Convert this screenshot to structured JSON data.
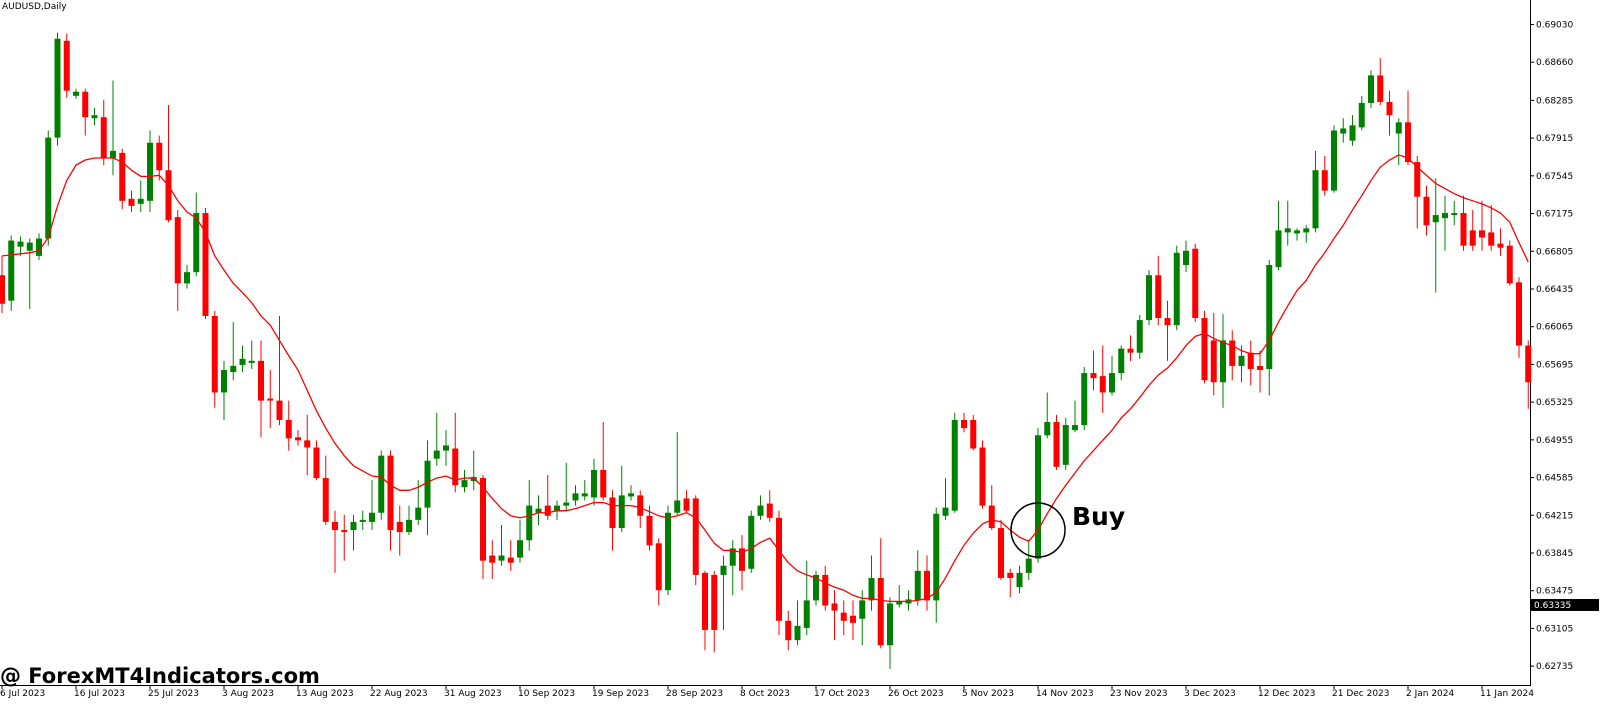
{
  "chart_data": {
    "type": "candlestick",
    "title": "AUDUSD,Daily",
    "watermark": "@ ForexMT4Indicators.com",
    "annotation": "Buy",
    "up_color": "#008000",
    "down_color": "#ff0000",
    "categories": [
      "6 Jul 2023",
      null,
      null,
      null,
      null,
      null,
      null,
      null,
      "16 Jul 2023",
      null,
      null,
      null,
      null,
      null,
      null,
      null,
      "25 Jul 2023",
      null,
      null,
      null,
      null,
      null,
      null,
      null,
      "3 Aug 2023",
      null,
      null,
      null,
      null,
      null,
      null,
      null,
      "13 Aug 2023",
      null,
      null,
      null,
      null,
      null,
      null,
      null,
      "22 Aug 2023",
      null,
      null,
      null,
      null,
      null,
      null,
      null,
      "31 Aug 2023",
      null,
      null,
      null,
      null,
      null,
      null,
      null,
      "10 Sep 2023",
      null,
      null,
      null,
      null,
      null,
      null,
      null,
      "19 Sep 2023",
      null,
      null,
      null,
      null,
      null,
      null,
      null,
      "28 Sep 2023",
      null,
      null,
      null,
      null,
      null,
      null,
      null,
      "8 Oct 2023",
      null,
      null,
      null,
      null,
      null,
      null,
      null,
      "17 Oct 2023",
      null,
      null,
      null,
      null,
      null,
      null,
      null,
      "26 Oct 2023",
      null,
      null,
      null,
      null,
      null,
      null,
      null,
      "5 Nov 2023",
      null,
      null,
      null,
      null,
      null,
      null,
      null,
      "14 Nov 2023",
      null,
      null,
      null,
      null,
      null,
      null,
      null,
      "23 Nov 2023",
      null,
      null,
      null,
      null,
      null,
      null,
      null,
      "3 Dec 2023",
      null,
      null,
      null,
      null,
      null,
      null,
      null,
      "12 Dec 2023",
      null,
      null,
      null,
      null,
      null,
      null,
      null,
      "21 Dec 2023",
      null,
      null,
      null,
      null,
      null,
      null,
      null,
      "2 Jan 2024",
      null,
      null,
      null,
      null,
      null,
      null,
      null,
      "11 Jan 2024",
      null,
      null,
      null,
      null,
      null
    ],
    "open": [
      0.6657,
      0.6632,
      0.6685,
      0.6681,
      0.6676,
      0.6693,
      0.6792,
      0.6887,
      0.6833,
      0.6837,
      0.6811,
      0.6812,
      0.6772,
      0.6777,
      0.6732,
      0.6727,
      0.673,
      0.6787,
      0.676,
      0.6714,
      0.6649,
      0.666,
      0.6718,
      0.6617,
      0.6542,
      0.6562,
      0.6569,
      0.6571,
      0.6573,
      0.6536,
      0.6534,
      0.6515,
      0.6498,
      0.6495,
      0.6488,
      0.6458,
      0.6415,
      0.6407,
      0.6407,
      0.6415,
      0.6415,
      0.6424,
      0.648,
      0.6415,
      0.6405,
      0.6417,
      0.6429,
      0.6477,
      0.6485,
      0.6487,
      0.6449,
      0.6455,
      0.6458,
      0.6382,
      0.6377,
      0.638,
      0.638,
      0.6397,
      0.6424,
      0.6431,
      0.6426,
      0.6431,
      0.6436,
      0.644,
      0.6439,
      0.6466,
      0.6439,
      0.6409,
      0.644,
      0.6441,
      0.6421,
      0.6394,
      0.6348,
      0.6424,
      0.6438,
      0.6438,
      0.6365,
      0.6363,
      0.6363,
      0.6372,
      0.6389,
      0.6369,
      0.6421,
      0.6433,
      0.6419,
      0.6318,
      0.6299,
      0.6311,
      0.6338,
      0.6363,
      0.6335,
      0.6326,
      0.6323,
      0.632,
      0.6338,
      0.636,
      0.6294,
      0.6334,
      0.6335,
      0.6338,
      0.6367,
      0.6338,
      0.6421,
      0.6426,
      0.6515,
      0.6515,
      0.6488,
      0.6431,
      0.6409,
      0.6365,
      0.6351,
      0.6365,
      0.6379,
      0.65,
      0.6513,
      0.6471,
      0.6505,
      0.651,
      0.6561,
      0.6558,
      0.6542,
      0.6561,
      0.6585,
      0.6581,
      0.6613,
      0.6657,
      0.6615,
      0.6608,
      0.6667,
      0.6683,
      0.6615,
      0.6593,
      0.6552,
      0.6593,
      0.6568,
      0.6581,
      0.6568,
      0.6565,
      0.6665,
      0.6699,
      0.6698,
      0.6699,
      0.6703,
      0.676,
      0.674,
      0.6796,
      0.6789,
      0.6802,
      0.6826,
      0.6853,
      0.6827,
      0.6796,
      0.6807,
      0.6768,
      0.6734,
      0.6709,
      0.6713,
      0.6716,
      0.6718,
      0.6701,
      0.6701,
      0.6699,
      0.6688,
      0.6686,
      0.665,
      0.6588
    ],
    "high": [
      0.6676,
      0.6696,
      0.6695,
      0.6693,
      0.6698,
      0.6799,
      0.6895,
      0.6894,
      0.684,
      0.684,
      0.6821,
      0.6829,
      0.6848,
      0.6781,
      0.674,
      0.675,
      0.6799,
      0.6794,
      0.6824,
      0.6721,
      0.6667,
      0.6738,
      0.6723,
      0.6622,
      0.6573,
      0.6611,
      0.6588,
      0.6593,
      0.6593,
      0.6564,
      0.6617,
      0.6534,
      0.6505,
      0.652,
      0.6495,
      0.648,
      0.6426,
      0.6422,
      0.6422,
      0.6426,
      0.6456,
      0.6485,
      0.6485,
      0.6431,
      0.6431,
      0.6456,
      0.6495,
      0.6522,
      0.6505,
      0.6522,
      0.6466,
      0.6485,
      0.6461,
      0.6397,
      0.6412,
      0.6397,
      0.6417,
      0.6456,
      0.6441,
      0.6461,
      0.6436,
      0.6473,
      0.6451,
      0.6456,
      0.6477,
      0.6513,
      0.6446,
      0.647,
      0.6451,
      0.6446,
      0.6431,
      0.6399,
      0.6431,
      0.6503,
      0.6446,
      0.6441,
      0.6367,
      0.6367,
      0.6382,
      0.6397,
      0.6402,
      0.6426,
      0.6441,
      0.6446,
      0.6426,
      0.6328,
      0.6338,
      0.6377,
      0.6367,
      0.6372,
      0.6348,
      0.6338,
      0.6338,
      0.6348,
      0.6382,
      0.6399,
      0.6341,
      0.6353,
      0.6348,
      0.6387,
      0.6382,
      0.6429,
      0.6458,
      0.6522,
      0.6522,
      0.652,
      0.6495,
      0.6451,
      0.6417,
      0.6369,
      0.6372,
      0.6397,
      0.6507,
      0.6542,
      0.652,
      0.6517,
      0.6534,
      0.6567,
      0.6583,
      0.6588,
      0.6578,
      0.6588,
      0.6598,
      0.6618,
      0.6662,
      0.6676,
      0.6632,
      0.6686,
      0.6691,
      0.6688,
      0.6622,
      0.662,
      0.6619,
      0.6603,
      0.6588,
      0.6593,
      0.6583,
      0.6672,
      0.673,
      0.673,
      0.6703,
      0.6706,
      0.6779,
      0.6774,
      0.6804,
      0.6811,
      0.6814,
      0.6833,
      0.6858,
      0.687,
      0.6838,
      0.6811,
      0.6838,
      0.6774,
      0.6745,
      0.6752,
      0.6735,
      0.673,
      0.6735,
      0.6721,
      0.673,
      0.6726,
      0.6703,
      0.6691,
      0.6655,
      0.6593
    ],
    "low": [
      0.662,
      0.6622,
      0.6676,
      0.6624,
      0.6672,
      0.6686,
      0.6784,
      0.6831,
      0.683,
      0.6794,
      0.6804,
      0.6765,
      0.6755,
      0.6722,
      0.6719,
      0.6719,
      0.6719,
      0.675,
      0.6709,
      0.6622,
      0.6644,
      0.6656,
      0.6614,
      0.6527,
      0.6515,
      0.6554,
      0.6562,
      0.6565,
      0.6498,
      0.6507,
      0.651,
      0.6485,
      0.649,
      0.6461,
      0.6456,
      0.6412,
      0.6365,
      0.6377,
      0.6387,
      0.6407,
      0.6407,
      0.6417,
      0.6387,
      0.6382,
      0.6402,
      0.6412,
      0.6402,
      0.647,
      0.647,
      0.6444,
      0.6444,
      0.6446,
      0.6359,
      0.6359,
      0.6372,
      0.6367,
      0.6375,
      0.6387,
      0.6412,
      0.6417,
      0.6417,
      0.6426,
      0.6431,
      0.6436,
      0.6431,
      0.6436,
      0.6387,
      0.6405,
      0.6436,
      0.6409,
      0.6387,
      0.6333,
      0.6343,
      0.6421,
      0.6424,
      0.6353,
      0.6289,
      0.6287,
      0.6309,
      0.6343,
      0.6348,
      0.6365,
      0.6417,
      0.6415,
      0.6304,
      0.6289,
      0.6294,
      0.6304,
      0.6333,
      0.6328,
      0.6299,
      0.6304,
      0.6299,
      0.6294,
      0.6328,
      0.6291,
      0.6271,
      0.6331,
      0.6328,
      0.6333,
      0.6328,
      0.6316,
      0.6417,
      0.6424,
      0.6503,
      0.6485,
      0.6428,
      0.6407,
      0.6358,
      0.6341,
      0.6345,
      0.6358,
      0.6375,
      0.6497,
      0.6466,
      0.6466,
      0.6503,
      0.6505,
      0.6544,
      0.6522,
      0.6539,
      0.6554,
      0.6573,
      0.6575,
      0.6608,
      0.6608,
      0.6573,
      0.6603,
      0.666,
      0.6611,
      0.6551,
      0.6539,
      0.6527,
      0.6554,
      0.6552,
      0.6549,
      0.6542,
      0.6539,
      0.6662,
      0.6686,
      0.6691,
      0.6689,
      0.6699,
      0.6735,
      0.6738,
      0.6787,
      0.6784,
      0.6799,
      0.6821,
      0.6824,
      0.6794,
      0.6765,
      0.6765,
      0.6703,
      0.6696,
      0.664,
      0.6681,
      0.6706,
      0.6681,
      0.6681,
      0.6681,
      0.6681,
      0.6676,
      0.6647,
      0.6576,
      0.6526
    ],
    "close": [
      0.6629,
      0.6691,
      0.669,
      0.6689,
      0.6693,
      0.6792,
      0.6889,
      0.6838,
      0.6837,
      0.6812,
      0.6814,
      0.6772,
      0.6779,
      0.673,
      0.6725,
      0.6732,
      0.6787,
      0.676,
      0.6711,
      0.6649,
      0.666,
      0.6718,
      0.6617,
      0.6542,
      0.6564,
      0.6568,
      0.6575,
      0.6573,
      0.6534,
      0.6534,
      0.6515,
      0.6497,
      0.6495,
      0.6488,
      0.6458,
      0.6415,
      0.6407,
      0.6405,
      0.6415,
      0.6417,
      0.6424,
      0.648,
      0.6407,
      0.6405,
      0.6417,
      0.6429,
      0.6475,
      0.6485,
      0.649,
      0.6451,
      0.6456,
      0.6459,
      0.6377,
      0.6375,
      0.6382,
      0.6375,
      0.6397,
      0.6431,
      0.6428,
      0.6421,
      0.6431,
      0.6434,
      0.6443,
      0.6443,
      0.6466,
      0.6439,
      0.6409,
      0.6441,
      0.6443,
      0.6421,
      0.6392,
      0.6348,
      0.6424,
      0.6436,
      0.6426,
      0.6363,
      0.6309,
      0.6309,
      0.6372,
      0.6389,
      0.6367,
      0.6421,
      0.6431,
      0.6419,
      0.6318,
      0.6299,
      0.6313,
      0.6338,
      0.6363,
      0.6333,
      0.6328,
      0.6318,
      0.6316,
      0.6338,
      0.636,
      0.6294,
      0.6335,
      0.6337,
      0.6339,
      0.6367,
      0.6338,
      0.6423,
      0.6429,
      0.6515,
      0.6507,
      0.6487,
      0.6431,
      0.6409,
      0.636,
      0.636,
      0.6365,
      0.6379,
      0.65,
      0.6513,
      0.6469,
      0.651,
      0.651,
      0.6561,
      0.6556,
      0.6542,
      0.6561,
      0.6585,
      0.6581,
      0.6613,
      0.6657,
      0.6615,
      0.6608,
      0.6679,
      0.6681,
      0.6615,
      0.6554,
      0.6552,
      0.6593,
      0.6568,
      0.6578,
      0.6565,
      0.6564,
      0.6667,
      0.6701,
      0.6703,
      0.6701,
      0.6703,
      0.676,
      0.674,
      0.6799,
      0.6801,
      0.6804,
      0.6826,
      0.6853,
      0.6827,
      0.6814,
      0.6807,
      0.6768,
      0.6734,
      0.6706,
      0.6716,
      0.6718,
      0.6718,
      0.6686,
      0.6686,
      0.6694,
      0.6686,
      0.6684,
      0.6649,
      0.6588,
      0.6552
    ],
    "ma": {
      "color": "#ff0000",
      "values": [
        0.6676,
        0.6677,
        0.6678,
        0.6679,
        0.6681,
        0.6694,
        0.6725,
        0.675,
        0.6765,
        0.677,
        0.6772,
        0.6772,
        0.6772,
        0.6768,
        0.676,
        0.6754,
        0.6754,
        0.6755,
        0.6745,
        0.673,
        0.6719,
        0.6713,
        0.6699,
        0.6676,
        0.6662,
        0.6649,
        0.664,
        0.663,
        0.6617,
        0.6608,
        0.6593,
        0.6578,
        0.6564,
        0.6544,
        0.6524,
        0.6507,
        0.6492,
        0.648,
        0.647,
        0.6465,
        0.646,
        0.6459,
        0.6451,
        0.6446,
        0.6446,
        0.6449,
        0.6454,
        0.6458,
        0.646,
        0.6456,
        0.6458,
        0.6458,
        0.6449,
        0.6438,
        0.6428,
        0.6421,
        0.6419,
        0.6421,
        0.6424,
        0.6424,
        0.6426,
        0.6426,
        0.6428,
        0.6431,
        0.6434,
        0.6434,
        0.6431,
        0.6431,
        0.6431,
        0.6429,
        0.6425,
        0.6421,
        0.6419,
        0.6421,
        0.6424,
        0.6419,
        0.6407,
        0.6394,
        0.6387,
        0.6387,
        0.6385,
        0.6389,
        0.6395,
        0.6399,
        0.6387,
        0.6375,
        0.6367,
        0.6363,
        0.636,
        0.6355,
        0.6351,
        0.6348,
        0.6343,
        0.634,
        0.634,
        0.6338,
        0.6337,
        0.6337,
        0.6337,
        0.6338,
        0.634,
        0.6346,
        0.636,
        0.6377,
        0.6392,
        0.6404,
        0.6413,
        0.6417,
        0.6415,
        0.6407,
        0.64,
        0.6396,
        0.6407,
        0.6423,
        0.6438,
        0.6451,
        0.6463,
        0.6475,
        0.6485,
        0.6495,
        0.6505,
        0.6517,
        0.6526,
        0.6537,
        0.6549,
        0.6559,
        0.6566,
        0.6576,
        0.6588,
        0.6597,
        0.66,
        0.6595,
        0.6591,
        0.6588,
        0.6583,
        0.658,
        0.658,
        0.6593,
        0.6611,
        0.6627,
        0.6642,
        0.6652,
        0.6667,
        0.6679,
        0.6693,
        0.6706,
        0.6721,
        0.6735,
        0.675,
        0.6763,
        0.677,
        0.6775,
        0.6772,
        0.6763,
        0.6755,
        0.6747,
        0.6742,
        0.6737,
        0.6733,
        0.673,
        0.6727,
        0.6723,
        0.6718,
        0.6709,
        0.6689,
        0.667
      ]
    },
    "price_marker": 0.63335,
    "ylim": [
      0.6255,
      0.6927
    ],
    "yticks": [
      {
        "value": 0.6903,
        "label": "0.69030"
      },
      {
        "value": 0.6866,
        "label": "0.68660"
      },
      0.68285,
      0.67915,
      0.67545,
      0.67175,
      0.66805,
      0.66435,
      0.66065,
      0.65695,
      0.65325,
      0.64955,
      0.64585,
      0.64215,
      0.63845,
      0.63475,
      0.63105,
      0.62735
    ]
  }
}
